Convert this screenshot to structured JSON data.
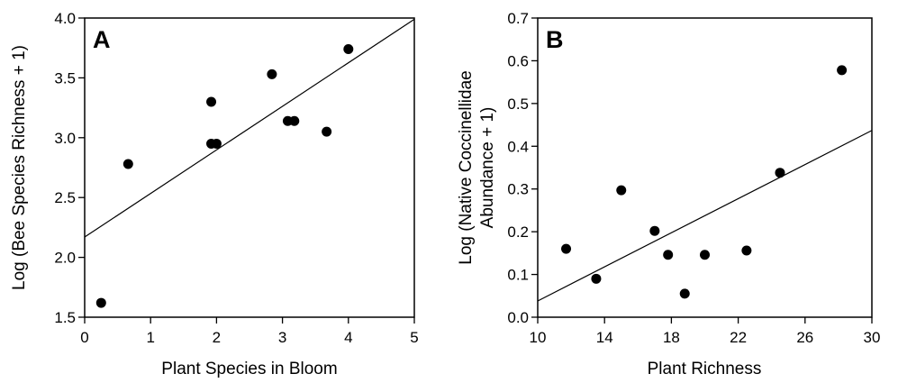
{
  "chart_data": [
    {
      "type": "scatter",
      "panel_label": "A",
      "xlabel": "Plant Species in Bloom",
      "ylabel": "Log (Bee Species Richness + 1)",
      "xlim": [
        0,
        5
      ],
      "ylim": [
        1.5,
        4.0
      ],
      "xticks": [
        "0",
        "1",
        "2",
        "3",
        "4",
        "5"
      ],
      "yticks": [
        "1.5",
        "2.0",
        "2.5",
        "3.0",
        "3.5",
        "4.0"
      ],
      "grid": false,
      "points": [
        {
          "x": 0.25,
          "y": 1.62
        },
        {
          "x": 0.66,
          "y": 2.78
        },
        {
          "x": 1.92,
          "y": 3.3
        },
        {
          "x": 1.92,
          "y": 2.95
        },
        {
          "x": 2.0,
          "y": 2.95
        },
        {
          "x": 2.84,
          "y": 3.53
        },
        {
          "x": 3.08,
          "y": 3.14
        },
        {
          "x": 3.18,
          "y": 3.14
        },
        {
          "x": 3.67,
          "y": 3.05
        },
        {
          "x": 4.0,
          "y": 3.74
        }
      ],
      "fit_line": {
        "x1": 0,
        "y1": 2.17,
        "x2": 5,
        "y2": 3.99
      }
    },
    {
      "type": "scatter",
      "panel_label": "B",
      "xlabel": "Plant Richness",
      "ylabel_lines": [
        "Log (Native Coccinellidae",
        "Abundance + 1)"
      ],
      "xlim": [
        10,
        30
      ],
      "ylim": [
        0.0,
        0.7
      ],
      "xticks": [
        "10",
        "14",
        "18",
        "22",
        "26",
        "30"
      ],
      "yticks": [
        "0.0",
        "0.1",
        "0.2",
        "0.3",
        "0.4",
        "0.5",
        "0.6",
        "0.7"
      ],
      "grid": false,
      "points": [
        {
          "x": 11.7,
          "y": 0.16
        },
        {
          "x": 13.5,
          "y": 0.09
        },
        {
          "x": 15.0,
          "y": 0.297
        },
        {
          "x": 17.0,
          "y": 0.202
        },
        {
          "x": 17.8,
          "y": 0.146
        },
        {
          "x": 18.8,
          "y": 0.055
        },
        {
          "x": 20.0,
          "y": 0.146
        },
        {
          "x": 22.5,
          "y": 0.156
        },
        {
          "x": 24.5,
          "y": 0.338
        },
        {
          "x": 28.2,
          "y": 0.578
        }
      ],
      "fit_line": {
        "x1": 10,
        "y1": 0.038,
        "x2": 30,
        "y2": 0.437
      }
    }
  ]
}
